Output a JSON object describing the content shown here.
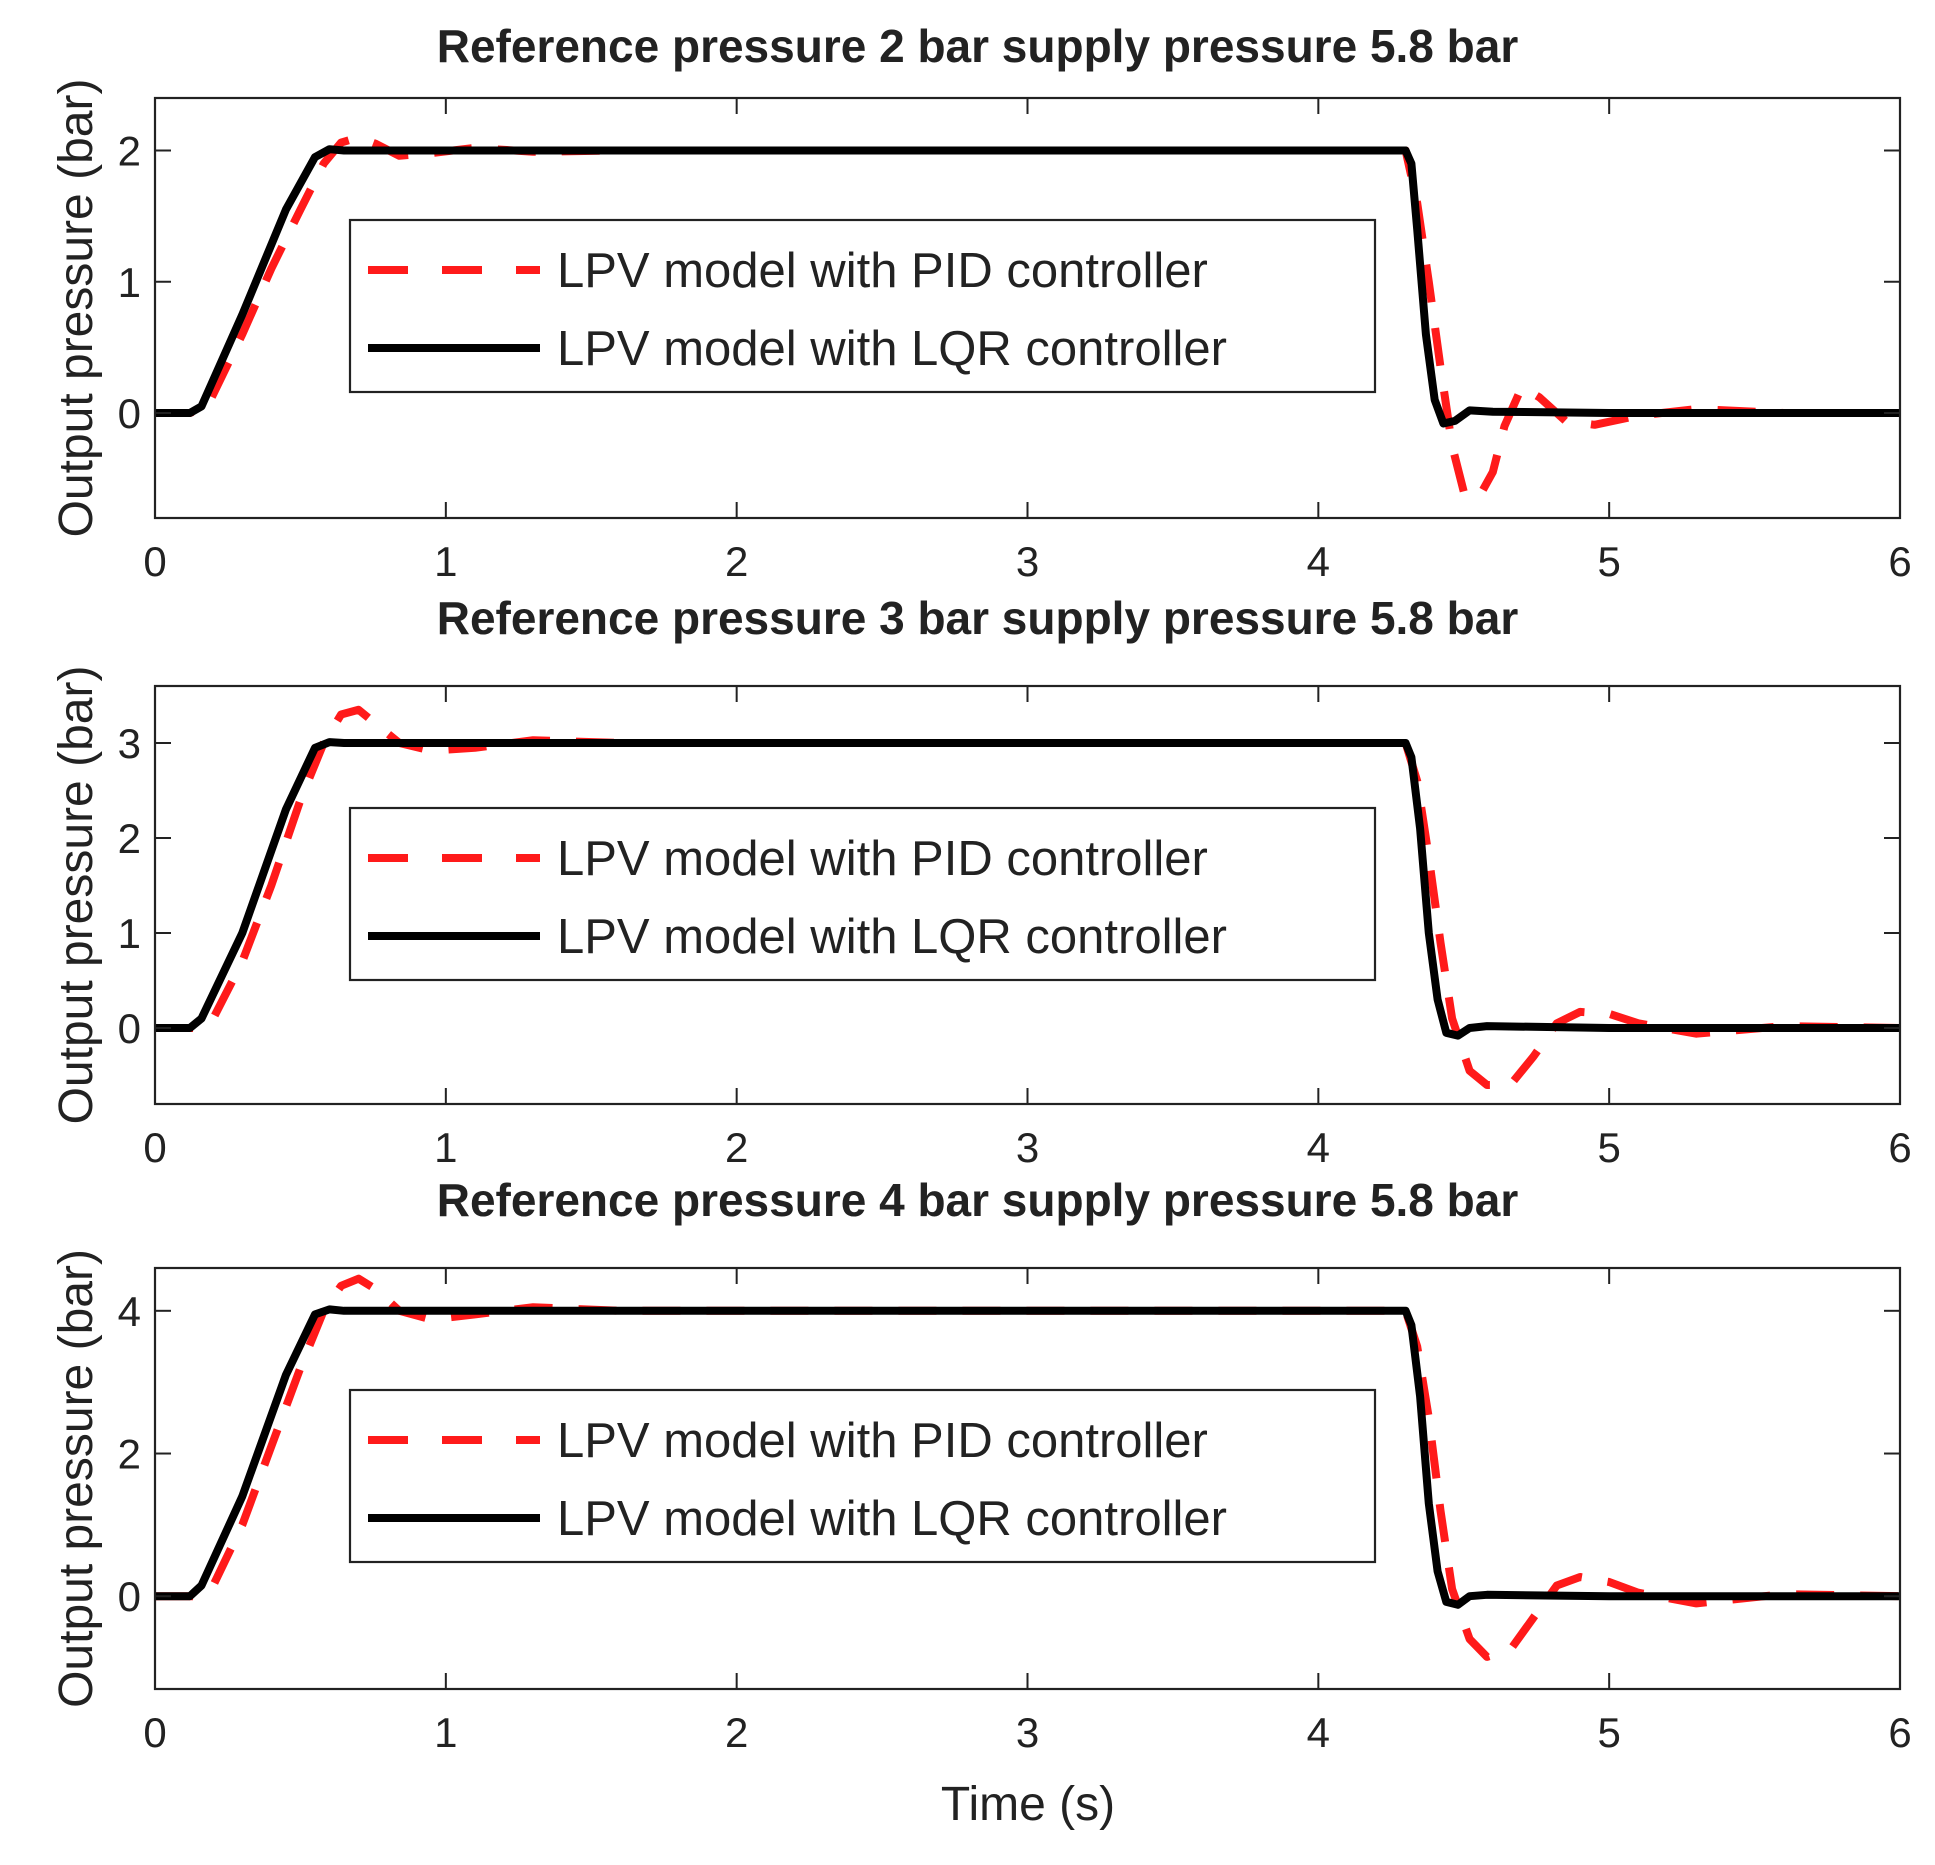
{
  "figure": {
    "xlabel": "Time (s)"
  },
  "colors": {
    "pid": "#ff1a1a",
    "lqr": "#000000",
    "axis": "#222222",
    "background": "#ffffff"
  },
  "chart_data": [
    {
      "type": "line",
      "title": "Reference pressure 2 bar supply pressure 5.8 bar",
      "xlabel": "",
      "ylabel": "Output pressure (bar)",
      "xlim": [
        0,
        6
      ],
      "ylim": [
        -0.8,
        2.4
      ],
      "xticks": [
        0,
        1,
        2,
        3,
        4,
        5,
        6
      ],
      "xtick_labels": [
        "0",
        "1",
        "2",
        "3",
        "4",
        "5",
        "6"
      ],
      "yticks": [
        0,
        1,
        2
      ],
      "ytick_labels": [
        "0",
        "1",
        "2"
      ],
      "grid": false,
      "legend_position": "center-left",
      "series": [
        {
          "name": "LPV model with PID controller",
          "style": "dashed",
          "color": "#ff1a1a",
          "x": [
            0,
            0.12,
            0.18,
            0.3,
            0.4,
            0.5,
            0.58,
            0.64,
            0.7,
            0.76,
            0.84,
            0.95,
            1.1,
            1.3,
            1.6,
            2.0,
            3.0,
            4.0,
            4.3,
            4.34,
            4.38,
            4.42,
            4.46,
            4.5,
            4.55,
            4.6,
            4.64,
            4.7,
            4.76,
            4.85,
            4.95,
            5.1,
            5.3,
            5.6,
            6.0
          ],
          "y": [
            0,
            0,
            0.05,
            0.6,
            1.1,
            1.55,
            1.9,
            2.06,
            2.1,
            2.05,
            1.96,
            1.98,
            2.02,
            1.99,
            2.0,
            2.0,
            2.0,
            2.0,
            2.0,
            1.6,
            1.0,
            0.35,
            -0.25,
            -0.6,
            -0.65,
            -0.45,
            -0.1,
            0.2,
            0.12,
            -0.06,
            -0.09,
            -0.02,
            0.03,
            0.0,
            0.0
          ]
        },
        {
          "name": "LPV model with LQR controller",
          "style": "solid",
          "color": "#000000",
          "x": [
            0,
            0.12,
            0.16,
            0.3,
            0.45,
            0.55,
            0.6,
            0.65,
            1.0,
            2.0,
            3.0,
            4.0,
            4.3,
            4.32,
            4.34,
            4.37,
            4.4,
            4.43,
            4.47,
            4.52,
            4.6,
            5.0,
            6.0
          ],
          "y": [
            0,
            0,
            0.05,
            0.75,
            1.55,
            1.95,
            2.01,
            2.0,
            2.0,
            2.0,
            2.0,
            2.0,
            2.0,
            1.9,
            1.4,
            0.6,
            0.1,
            -0.08,
            -0.06,
            0.02,
            0.01,
            0.0,
            0.0
          ]
        }
      ]
    },
    {
      "type": "line",
      "title": "Reference pressure 3 bar supply pressure 5.8 bar",
      "xlabel": "",
      "ylabel": "Output pressure (bar)",
      "xlim": [
        0,
        6
      ],
      "ylim": [
        -0.8,
        3.6
      ],
      "xticks": [
        0,
        1,
        2,
        3,
        4,
        5,
        6
      ],
      "xtick_labels": [
        "0",
        "1",
        "2",
        "3",
        "4",
        "5",
        "6"
      ],
      "yticks": [
        0,
        1,
        2,
        3
      ],
      "ytick_labels": [
        "0",
        "1",
        "2",
        "3"
      ],
      "grid": false,
      "legend_position": "center-left",
      "series": [
        {
          "name": "LPV model with PID controller",
          "style": "dashed",
          "color": "#ff1a1a",
          "x": [
            0,
            0.14,
            0.2,
            0.3,
            0.4,
            0.5,
            0.58,
            0.64,
            0.7,
            0.76,
            0.84,
            0.95,
            1.1,
            1.3,
            1.6,
            2.0,
            3.0,
            4.0,
            4.3,
            4.34,
            4.38,
            4.42,
            4.46,
            4.52,
            4.58,
            4.66,
            4.74,
            4.82,
            4.9,
            5.0,
            5.1,
            5.3,
            5.6,
            6.0
          ],
          "y": [
            0,
            0,
            0.1,
            0.7,
            1.5,
            2.4,
            3.0,
            3.3,
            3.35,
            3.2,
            3.0,
            2.92,
            2.95,
            3.03,
            3.0,
            3.0,
            3.0,
            3.0,
            3.0,
            2.6,
            1.8,
            0.9,
            0.1,
            -0.45,
            -0.6,
            -0.6,
            -0.3,
            0.05,
            0.17,
            0.15,
            0.05,
            -0.06,
            0.02,
            0.0
          ]
        },
        {
          "name": "LPV model with LQR controller",
          "style": "solid",
          "color": "#000000",
          "x": [
            0,
            0.12,
            0.16,
            0.3,
            0.45,
            0.55,
            0.6,
            0.65,
            1.0,
            2.0,
            3.0,
            4.0,
            4.3,
            4.32,
            4.35,
            4.38,
            4.41,
            4.44,
            4.48,
            4.52,
            4.58,
            5.0,
            6.0
          ],
          "y": [
            0,
            0,
            0.1,
            1.0,
            2.3,
            2.95,
            3.01,
            3.0,
            3.0,
            3.0,
            3.0,
            3.0,
            3.0,
            2.85,
            2.1,
            1.0,
            0.3,
            -0.05,
            -0.08,
            0.0,
            0.02,
            0.0,
            0.0
          ]
        }
      ]
    },
    {
      "type": "line",
      "title": "Reference pressure 4 bar supply pressure 5.8 bar",
      "xlabel": "Time (s)",
      "ylabel": "Output pressure (bar)",
      "xlim": [
        0,
        6
      ],
      "ylim": [
        -1.3,
        4.6
      ],
      "xticks": [
        0,
        1,
        2,
        3,
        4,
        5,
        6
      ],
      "xtick_labels": [
        "0",
        "1",
        "2",
        "3",
        "4",
        "5",
        "6"
      ],
      "yticks": [
        0,
        2,
        4
      ],
      "ytick_labels": [
        "0",
        "2",
        "4"
      ],
      "grid": false,
      "legend_position": "center-left",
      "series": [
        {
          "name": "LPV model with PID controller",
          "style": "dashed",
          "color": "#ff1a1a",
          "x": [
            0,
            0.14,
            0.2,
            0.3,
            0.4,
            0.5,
            0.58,
            0.64,
            0.7,
            0.76,
            0.84,
            0.95,
            1.1,
            1.3,
            1.6,
            2.0,
            3.0,
            4.0,
            4.3,
            4.34,
            4.38,
            4.42,
            4.46,
            4.52,
            4.58,
            4.66,
            4.74,
            4.82,
            4.9,
            5.0,
            5.1,
            5.3,
            5.6,
            6.0
          ],
          "y": [
            0,
            0,
            0.15,
            1.0,
            2.1,
            3.2,
            4.0,
            4.35,
            4.45,
            4.3,
            4.0,
            3.88,
            3.95,
            4.05,
            4.0,
            4.0,
            4.0,
            4.0,
            4.0,
            3.5,
            2.5,
            1.2,
            0.1,
            -0.6,
            -0.85,
            -0.75,
            -0.3,
            0.15,
            0.27,
            0.2,
            0.05,
            -0.1,
            0.03,
            0.0
          ]
        },
        {
          "name": "LPV model with LQR controller",
          "style": "solid",
          "color": "#000000",
          "x": [
            0,
            0.12,
            0.16,
            0.3,
            0.45,
            0.55,
            0.6,
            0.65,
            1.0,
            2.0,
            3.0,
            4.0,
            4.3,
            4.32,
            4.35,
            4.38,
            4.41,
            4.44,
            4.48,
            4.52,
            4.58,
            5.0,
            6.0
          ],
          "y": [
            0,
            0,
            0.15,
            1.4,
            3.1,
            3.95,
            4.02,
            4.0,
            4.0,
            4.0,
            4.0,
            4.0,
            4.0,
            3.8,
            2.8,
            1.3,
            0.35,
            -0.08,
            -0.12,
            0.0,
            0.02,
            0.0,
            0.0
          ]
        }
      ]
    }
  ]
}
